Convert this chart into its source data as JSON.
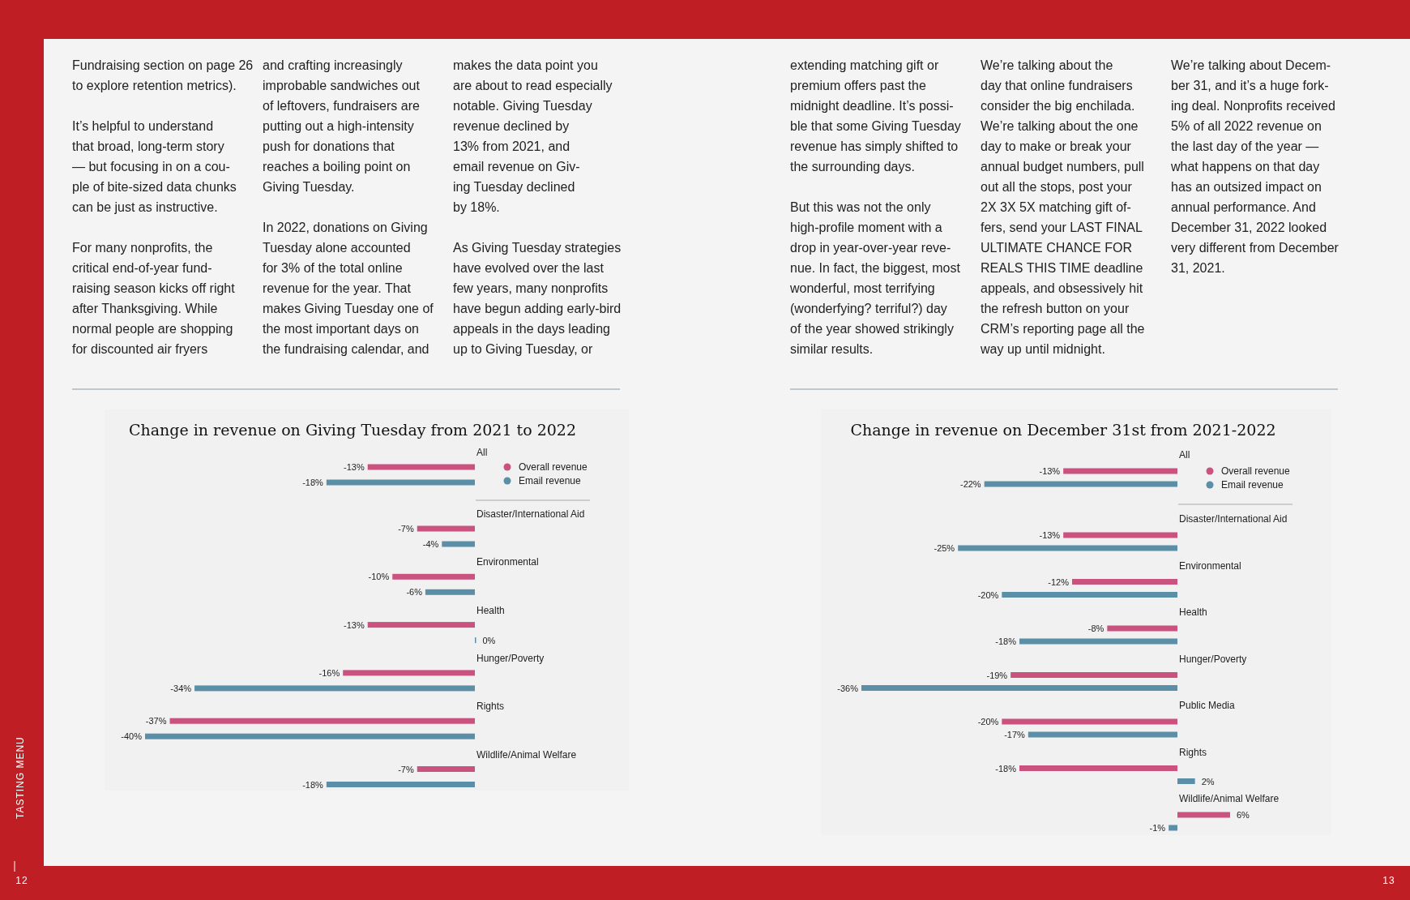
{
  "chart_data": [
    {
      "type": "other",
      "annotations": [
        "Fundraising section on page 26\nto explore retention metrics).\n\nIt’s helpful to understand\nthat broad, long-term story\n—  but focusing in on a cou-\nple of bite-sized data chunks\ncan be just as instructive.\n\nFor many nonprofits, the\ncritical end-of-year fund-\nraising season kicks off right\nafter Thanksgiving. While\nnormal people are shopping\nfor discounted air fryers",
        "and crafting increasingly\nimprobable sandwiches out\nof leftovers, fundraisers are\nputting out a high-intensity\npush for donations that\nreaches a boiling point on\nGiving Tuesday.\n\nIn 2022, donations on Giving\nTuesday alone accounted\nfor 3% of the total online\nrevenue for the year. That\nmakes Giving Tuesday one of\nthe most important days on\nthe fundraising calendar, and",
        "makes the data point you\nare about to read especially\nnotable. Giving Tuesday\nrevenue declined by\n13% from 2021, and\nemail revenue on Giv-\ning Tuesday declined\nby 18%.\n\nAs Giving Tuesday strategies\nhave evolved over the last\nfew years, many nonprofits\nhave begun adding early-bird\nappeals in the days leading\nup to Giving Tuesday, or",
        "TASTING MENU",
        "12"
      ]
    },
    {
      "type": "bar",
      "orientation": "horizontal",
      "title": "Change in revenue on Giving Tuesday from 2021 to 2022",
      "legend": "top right",
      "categories": [
        "All",
        "Disaster/International Aid",
        "Environmental",
        "Health",
        "Hunger/Poverty",
        "Rights",
        "Wildlife/Animal Welfare"
      ],
      "series": [
        {
          "name": "Overall revenue",
          "color": "#c9527e",
          "values": [
            -13,
            -7,
            -10,
            -13,
            -16,
            -37,
            -7
          ],
          "value_labels": [
            "-13%",
            "-7%",
            "-10%",
            "-13%",
            "-16%",
            "-37%",
            "-7%"
          ]
        },
        {
          "name": "Email revenue",
          "color": "#5b8fa8",
          "values": [
            -18,
            -4,
            -6,
            0,
            -34,
            -40,
            -18
          ],
          "value_labels": [
            "-18%",
            "-4%",
            "-6%",
            "0%",
            "-34%",
            "-40%",
            "-18%"
          ]
        }
      ]
    },
    {
      "type": "other",
      "annotations": [
        "extending matching gift or\npremium offers past the\nmidnight deadline. It’s possi-\nble that some Giving Tuesday\nrevenue has simply shifted to\nthe surrounding days.\n\nBut this was not the only\nhigh-profile moment with a\ndrop in year-over-year reve-\nnue. In fact, the biggest, most\nwonderful, most terrifying\n(wonderfying? terriful?) day\nof the year showed strikingly\nsimilar results.",
        "We’re talking about the\nday that online fundraisers\nconsider the big enchilada.\nWe’re talking about the one\nday to make or break your\nannual budget numbers, pull\nout all the stops, post your\n2X 3X 5X matching gift of-\nfers, send your LAST FINAL\nULTIMATE CHANCE FOR\nREALS THIS TIME deadline\nappeals, and obsessively hit\nthe refresh button on your\nCRM’s reporting page all the\nway up until midnight.",
        "We’re talking about Decem-\nber 31, and it’s a huge fork-\ning deal. Nonprofits received\n5% of all 2022 revenue on\nthe last day of the year —\nwhat happens on that day\nhas an outsized impact on\nannual performance. And\nDecember 31, 2022 looked\nvery different from December\n31, 2021.",
        "13"
      ]
    },
    {
      "type": "bar",
      "orientation": "horizontal",
      "title": "Change in revenue on December 31st from 2021-2022",
      "legend": "top right",
      "categories": [
        "All",
        "Disaster/International Aid",
        "Environmental",
        "Health",
        "Hunger/Poverty",
        "Public Media",
        "Rights",
        "Wildlife/Animal Welfare"
      ],
      "series": [
        {
          "name": "Overall revenue",
          "color": "#c9527e",
          "values": [
            -13,
            -13,
            -12,
            -8,
            -19,
            -20,
            -18,
            6
          ],
          "value_labels": [
            "-13%",
            "-13%",
            "-12%",
            "-8%",
            "-19%",
            "-20%",
            "-18%",
            "6%"
          ]
        },
        {
          "name": "Email revenue",
          "color": "#5b8fa8",
          "values": [
            -22,
            -25,
            -20,
            -18,
            -36,
            -17,
            2,
            -1
          ],
          "value_labels": [
            "-22%",
            "-25%",
            "-20%",
            "-18%",
            "-36%",
            "-17%",
            "2%",
            "-1%"
          ]
        }
      ]
    }
  ]
}
